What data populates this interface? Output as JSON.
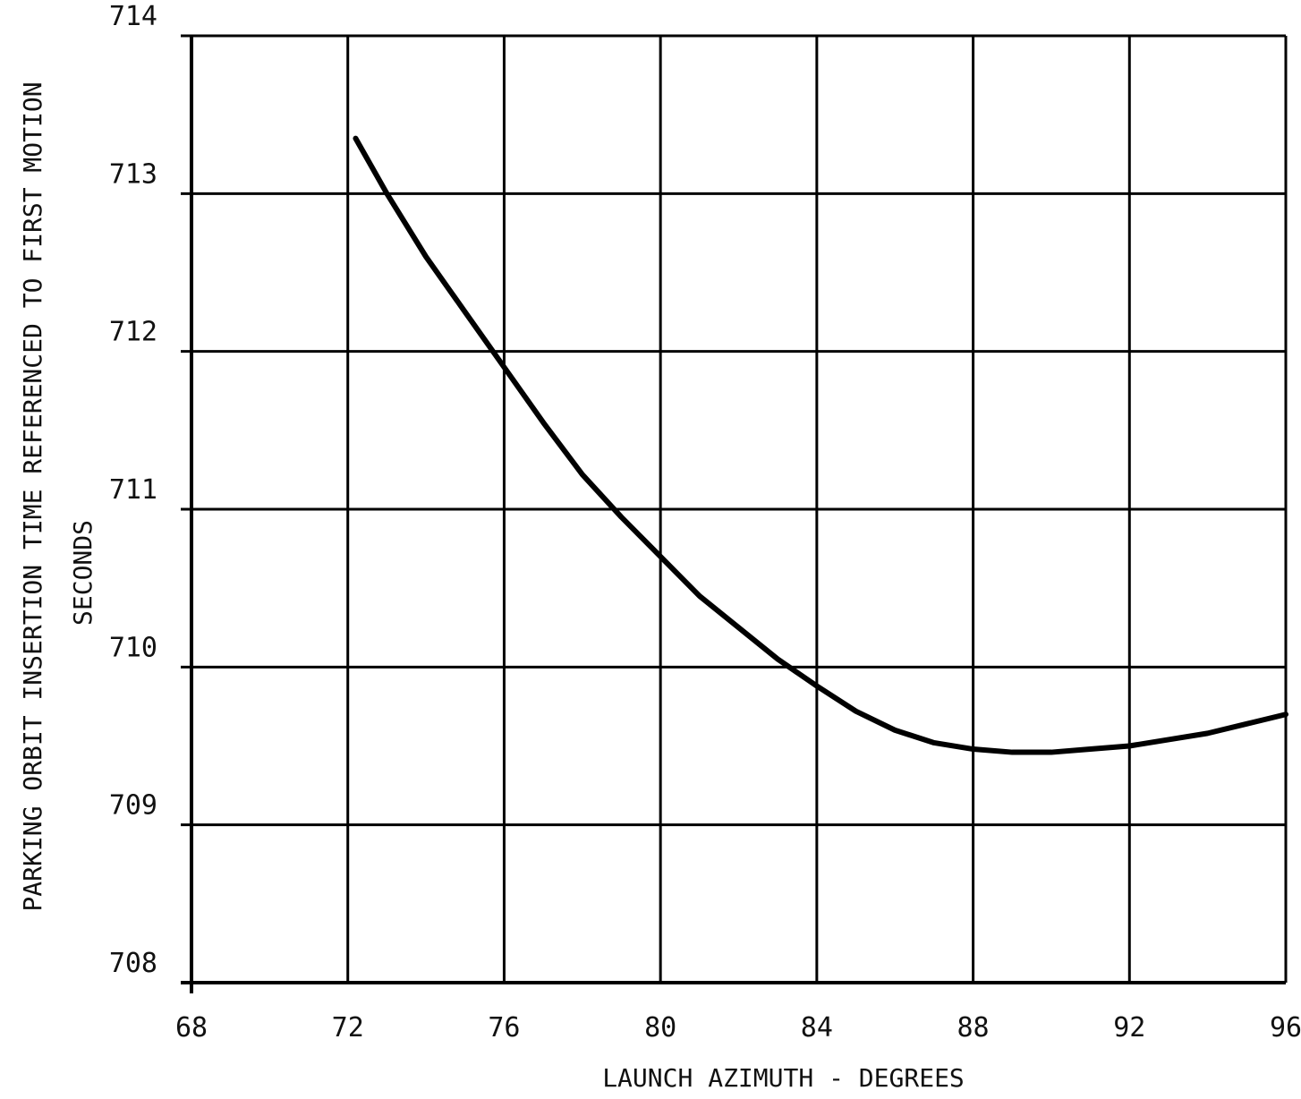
{
  "chart_data": {
    "type": "line",
    "title": "",
    "xlabel": "LAUNCH AZIMUTH - DEGREES",
    "ylabel": "PARKING ORBIT INSERTION TIME REFERENCED TO FIRST MOTION",
    "ylabel_units": "SECONDS",
    "xlim": [
      68,
      96
    ],
    "ylim": [
      708,
      714
    ],
    "x_ticks": [
      68,
      72,
      76,
      80,
      84,
      88,
      92,
      96
    ],
    "y_ticks": [
      708,
      709,
      710,
      711,
      712,
      713,
      714
    ],
    "grid": true,
    "legend": "none",
    "line_color": "#000000",
    "series": [
      {
        "x": [
          72.2,
          73,
          74,
          75,
          76,
          77,
          78,
          79,
          80,
          81,
          82,
          83,
          84,
          85,
          86,
          87,
          88,
          89,
          90,
          91,
          92,
          93,
          94,
          95,
          96
        ],
        "values": [
          713.35,
          713.0,
          712.6,
          712.25,
          711.9,
          711.55,
          711.22,
          710.95,
          710.7,
          710.45,
          710.25,
          710.05,
          709.88,
          709.72,
          709.6,
          709.52,
          709.48,
          709.46,
          709.46,
          709.48,
          709.5,
          709.54,
          709.58,
          709.64,
          709.7
        ]
      }
    ]
  }
}
